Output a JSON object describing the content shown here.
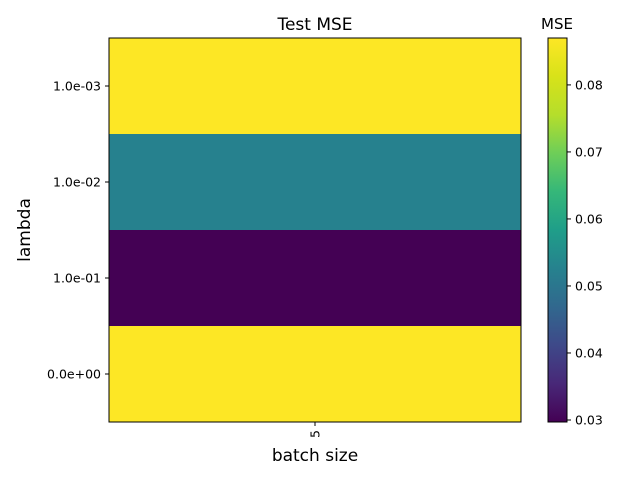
{
  "chart_data": {
    "type": "heatmap",
    "title": "Test MSE",
    "xlabel": "batch size",
    "ylabel": "lambda",
    "x_categories": [
      "5"
    ],
    "y_categories": [
      "1.0e-03",
      "1.0e-02",
      "1.0e-01",
      "0.0e+00"
    ],
    "values": [
      [
        0.087
      ],
      [
        0.0525
      ],
      [
        0.0297
      ],
      [
        0.087
      ]
    ],
    "colorbar": {
      "label": "MSE",
      "min": 0.0297,
      "max": 0.087,
      "ticks": [
        "0.03",
        "0.04",
        "0.05",
        "0.06",
        "0.07",
        "0.08"
      ],
      "colormap": "viridis"
    }
  }
}
